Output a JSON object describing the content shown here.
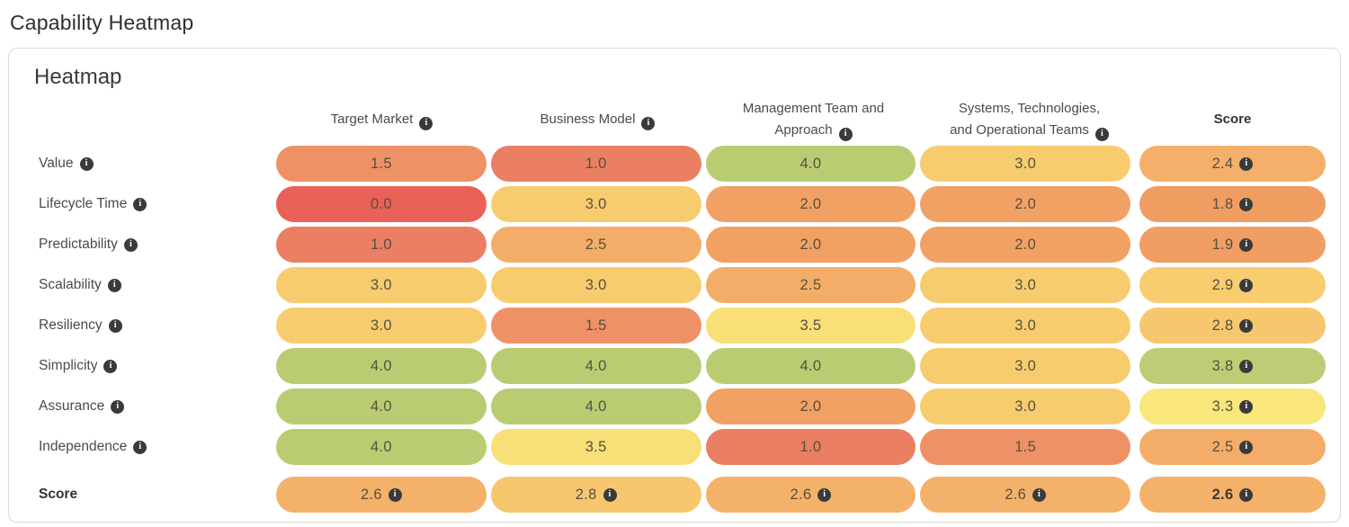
{
  "page": {
    "title": "Capability Heatmap"
  },
  "card": {
    "title": "Heatmap"
  },
  "info_icon_glyph": "i",
  "columns": [
    {
      "label": "Target Market",
      "info": true,
      "bold": false
    },
    {
      "label": "Business Model",
      "info": true,
      "bold": false
    },
    {
      "label": "Management Team and Approach",
      "info": true,
      "bold": false
    },
    {
      "label": "Systems, Technologies, and Operational Teams",
      "info": true,
      "bold": false
    },
    {
      "label": "Score",
      "info": false,
      "bold": true
    }
  ],
  "rows": [
    {
      "label": "Value",
      "info": true,
      "is_total": false,
      "cells": [
        "1.5",
        "1.0",
        "4.0",
        "3.0"
      ],
      "score": "2.4"
    },
    {
      "label": "Lifecycle Time",
      "info": true,
      "is_total": false,
      "cells": [
        "0.0",
        "3.0",
        "2.0",
        "2.0"
      ],
      "score": "1.8"
    },
    {
      "label": "Predictability",
      "info": true,
      "is_total": false,
      "cells": [
        "1.0",
        "2.5",
        "2.0",
        "2.0"
      ],
      "score": "1.9"
    },
    {
      "label": "Scalability",
      "info": true,
      "is_total": false,
      "cells": [
        "3.0",
        "3.0",
        "2.5",
        "3.0"
      ],
      "score": "2.9"
    },
    {
      "label": "Resiliency",
      "info": true,
      "is_total": false,
      "cells": [
        "3.0",
        "1.5",
        "3.5",
        "3.0"
      ],
      "score": "2.8"
    },
    {
      "label": "Simplicity",
      "info": true,
      "is_total": false,
      "cells": [
        "4.0",
        "4.0",
        "4.0",
        "3.0"
      ],
      "score": "3.8"
    },
    {
      "label": "Assurance",
      "info": true,
      "is_total": false,
      "cells": [
        "4.0",
        "4.0",
        "2.0",
        "3.0"
      ],
      "score": "3.3"
    },
    {
      "label": "Independence",
      "info": true,
      "is_total": false,
      "cells": [
        "4.0",
        "3.5",
        "1.0",
        "1.5"
      ],
      "score": "2.5"
    },
    {
      "label": "Score",
      "info": false,
      "is_total": true,
      "cells": [
        "2.6",
        "2.8",
        "2.6",
        "2.6"
      ],
      "score": "2.6"
    }
  ],
  "color_scale": {
    "0.0": "#e96157",
    "1.0": "#ea7f63",
    "1.5": "#ee9167",
    "1.8": "#f09d62",
    "1.9": "#f09e63",
    "2.0": "#f1a164",
    "2.4": "#f4b06a",
    "2.5": "#f3ad68",
    "2.6": "#f4b16a",
    "2.8": "#f6c76e",
    "2.9": "#f7cd70",
    "3.0": "#f7cc6e",
    "3.3": "#f9e77c",
    "3.5": "#f8df77",
    "3.8": "#bccd75",
    "4.0": "#bacc72"
  },
  "chart_data": {
    "type": "heatmap",
    "title": "Capability Heatmap",
    "x_categories": [
      "Target Market",
      "Business Model",
      "Management Team and Approach",
      "Systems, Technologies, and Operational Teams",
      "Score"
    ],
    "y_categories": [
      "Value",
      "Lifecycle Time",
      "Predictability",
      "Scalability",
      "Resiliency",
      "Simplicity",
      "Assurance",
      "Independence",
      "Score"
    ],
    "values": [
      [
        1.5,
        1.0,
        4.0,
        3.0,
        2.4
      ],
      [
        0.0,
        3.0,
        2.0,
        2.0,
        1.8
      ],
      [
        1.0,
        2.5,
        2.0,
        2.0,
        1.9
      ],
      [
        3.0,
        3.0,
        2.5,
        3.0,
        2.9
      ],
      [
        3.0,
        1.5,
        3.5,
        3.0,
        2.8
      ],
      [
        4.0,
        4.0,
        4.0,
        3.0,
        3.8
      ],
      [
        4.0,
        4.0,
        2.0,
        3.0,
        3.3
      ],
      [
        4.0,
        3.5,
        1.0,
        1.5,
        2.5
      ],
      [
        2.6,
        2.8,
        2.6,
        2.6,
        2.6
      ]
    ],
    "value_range": [
      0,
      4
    ],
    "low_color": "#e96157",
    "mid_color": "#f7cc6e",
    "high_color": "#bacc72"
  }
}
